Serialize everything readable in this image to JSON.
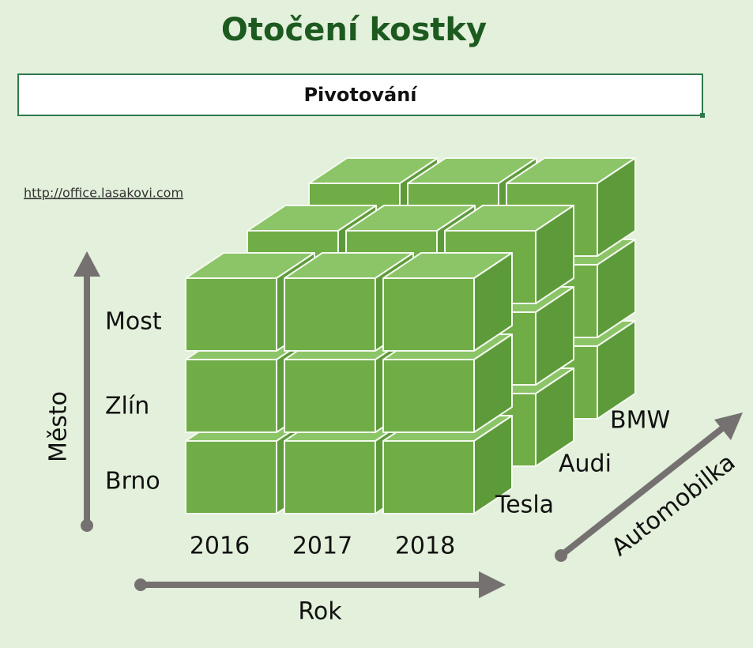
{
  "header": {
    "title": "Otočení kostky",
    "subtitle": "Pivotování",
    "link": "http://office.lasakovi.com"
  },
  "axes": {
    "vertical": "Město",
    "horizontal": "Rok",
    "depth": "Automobilka"
  },
  "rows": [
    "Brno",
    "Zlín",
    "Most"
  ],
  "columns": [
    "2016",
    "2017",
    "2018"
  ],
  "depth": [
    "Tesla",
    "Audi",
    "BMW"
  ]
}
